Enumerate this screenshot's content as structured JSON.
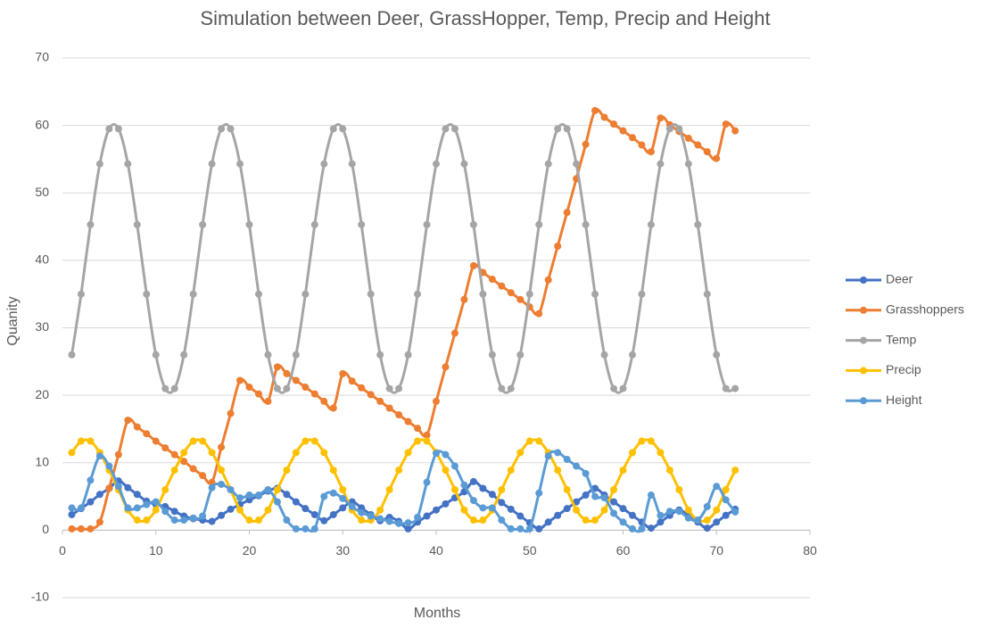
{
  "chart_data": {
    "type": "line",
    "title": "Simulation between Deer, GrassHopper, Temp, Precip and Height",
    "x_label": "Months",
    "y_label": "Quanity",
    "x": [
      1,
      2,
      3,
      4,
      5,
      6,
      7,
      8,
      9,
      10,
      11,
      12,
      13,
      14,
      15,
      16,
      17,
      18,
      19,
      20,
      21,
      22,
      23,
      24,
      25,
      26,
      27,
      28,
      29,
      30,
      31,
      32,
      33,
      34,
      35,
      36,
      37,
      38,
      39,
      40,
      41,
      42,
      43,
      44,
      45,
      46,
      47,
      48,
      49,
      50,
      51,
      52,
      53,
      54,
      55,
      56,
      57,
      58,
      59,
      60,
      61,
      62,
      63,
      64,
      65,
      66,
      67,
      68,
      69,
      70,
      71,
      72
    ],
    "xlim": [
      0,
      80
    ],
    "xticks": [
      0,
      10,
      20,
      30,
      40,
      50,
      60,
      70,
      80
    ],
    "ylim": [
      -10,
      70
    ],
    "yticks": [
      -10,
      0,
      10,
      20,
      30,
      40,
      50,
      60,
      70
    ],
    "grid": true,
    "legend": "right",
    "series": [
      {
        "name": "Deer",
        "color": "#4472c4",
        "values": [
          2.3,
          3.2,
          4.2,
          5.3,
          6.2,
          7.3,
          6.3,
          5.3,
          4.3,
          3.8,
          3.5,
          2.8,
          2.1,
          1.7,
          1.5,
          1.3,
          2.2,
          3.1,
          3.8,
          4.5,
          5.1,
          5.8,
          6.2,
          5.3,
          4.2,
          3.2,
          2.3,
          1.4,
          2.3,
          3.3,
          4.2,
          3.3,
          2.3,
          1.4,
          1.9,
          1.3,
          0.2,
          1.2,
          2.1,
          3.0,
          3.9,
          4.8,
          5.7,
          7.2,
          6.2,
          5.3,
          4.1,
          3.1,
          2.1,
          1.1,
          0.2,
          1.2,
          2.2,
          3.2,
          4.2,
          5.2,
          6.2,
          5.2,
          4.2,
          3.2,
          2.2,
          1.2,
          0.3,
          1.2,
          2.2,
          3.0,
          2.2,
          1.2,
          0.3,
          1.2,
          2.2,
          3.1
        ]
      },
      {
        "name": "Grasshoppers",
        "color": "#ed7d31",
        "values": [
          0.2,
          0.2,
          0.2,
          1.2,
          6.2,
          11.2,
          16.3,
          15.3,
          14.3,
          13.2,
          12.2,
          11.2,
          10.2,
          9.1,
          8.1,
          7.1,
          12.3,
          17.3,
          22.2,
          21.2,
          20.2,
          19.1,
          24.2,
          23.2,
          22.2,
          21.2,
          20.2,
          19.1,
          18.1,
          23.2,
          22.1,
          21.1,
          20.1,
          19.1,
          18.1,
          17.1,
          16.1,
          15.1,
          14.1,
          19.1,
          24.2,
          29.2,
          34.2,
          39.2,
          38.2,
          37.2,
          36.2,
          35.2,
          34.2,
          33.1,
          32.1,
          37.1,
          42.1,
          47.1,
          52.1,
          57.2,
          62.2,
          61.2,
          60.2,
          59.2,
          58.2,
          57.1,
          56.1,
          61.1,
          60.1,
          59.1,
          58.1,
          57.1,
          56.1,
          55.1,
          60.2,
          59.2
        ]
      },
      {
        "name": "Temp",
        "color": "#a5a5a5",
        "values": [
          26,
          35,
          45.3,
          54.3,
          59.5,
          59.5,
          54.3,
          45.3,
          35,
          26,
          21,
          21,
          26,
          35,
          45.3,
          54.3,
          59.5,
          59.5,
          54.3,
          45.3,
          35,
          26,
          21,
          21,
          26,
          35,
          45.3,
          54.3,
          59.5,
          59.5,
          54.3,
          45.3,
          35,
          26,
          21,
          21,
          26,
          35,
          45.3,
          54.3,
          59.5,
          59.5,
          54.3,
          45.3,
          35,
          26,
          21,
          21,
          26,
          35,
          45.3,
          54.3,
          59.5,
          59.5,
          54.3,
          45.3,
          35,
          26,
          21,
          21,
          26,
          35,
          45.3,
          54.3,
          59.5,
          59.5,
          54.3,
          45.3,
          35,
          26,
          21,
          21
        ]
      },
      {
        "name": "Precip",
        "color": "#ffc000",
        "values": [
          11.5,
          13.2,
          13.2,
          11.5,
          8.9,
          6,
          3,
          1.5,
          1.5,
          3,
          6,
          8.9,
          11.5,
          13.2,
          13.2,
          11.5,
          8.9,
          6,
          3,
          1.5,
          1.5,
          3,
          6,
          8.9,
          11.5,
          13.2,
          13.2,
          11.5,
          8.9,
          6,
          3,
          1.5,
          1.5,
          3,
          6,
          8.9,
          11.5,
          13.2,
          13.2,
          11.5,
          8.9,
          6,
          3,
          1.5,
          1.5,
          3,
          6,
          8.9,
          11.5,
          13.2,
          13.2,
          11.5,
          8.9,
          6,
          3,
          1.5,
          1.5,
          3,
          6,
          8.9,
          11.5,
          13.2,
          13.2,
          11.5,
          8.9,
          6,
          3,
          1.5,
          1.5,
          3,
          6,
          8.9
        ]
      },
      {
        "name": "Height",
        "color": "#5b9bd5",
        "values": [
          3.3,
          3.3,
          7.4,
          11,
          9.5,
          6.5,
          3.3,
          3.3,
          3.8,
          4.2,
          2.8,
          1.5,
          1.5,
          1.8,
          2.1,
          6.3,
          6.8,
          6,
          4.8,
          5.2,
          5.2,
          6,
          4.2,
          1.5,
          0.2,
          0.2,
          0.2,
          5,
          5.5,
          4.7,
          3.5,
          2.6,
          2.1,
          1.7,
          1.3,
          1,
          1.1,
          1.9,
          7.1,
          11.4,
          11.2,
          9.5,
          6.7,
          4.4,
          3.3,
          3.3,
          1.5,
          0.2,
          0.2,
          0.2,
          5.5,
          11,
          11.5,
          10.5,
          9.5,
          8.4,
          5,
          4.8,
          2.5,
          1.2,
          0.2,
          0.2,
          5.2,
          2.2,
          2.8,
          2.8,
          1.8,
          1.5,
          3.5,
          6.5,
          4.5,
          2.7
        ]
      }
    ]
  }
}
